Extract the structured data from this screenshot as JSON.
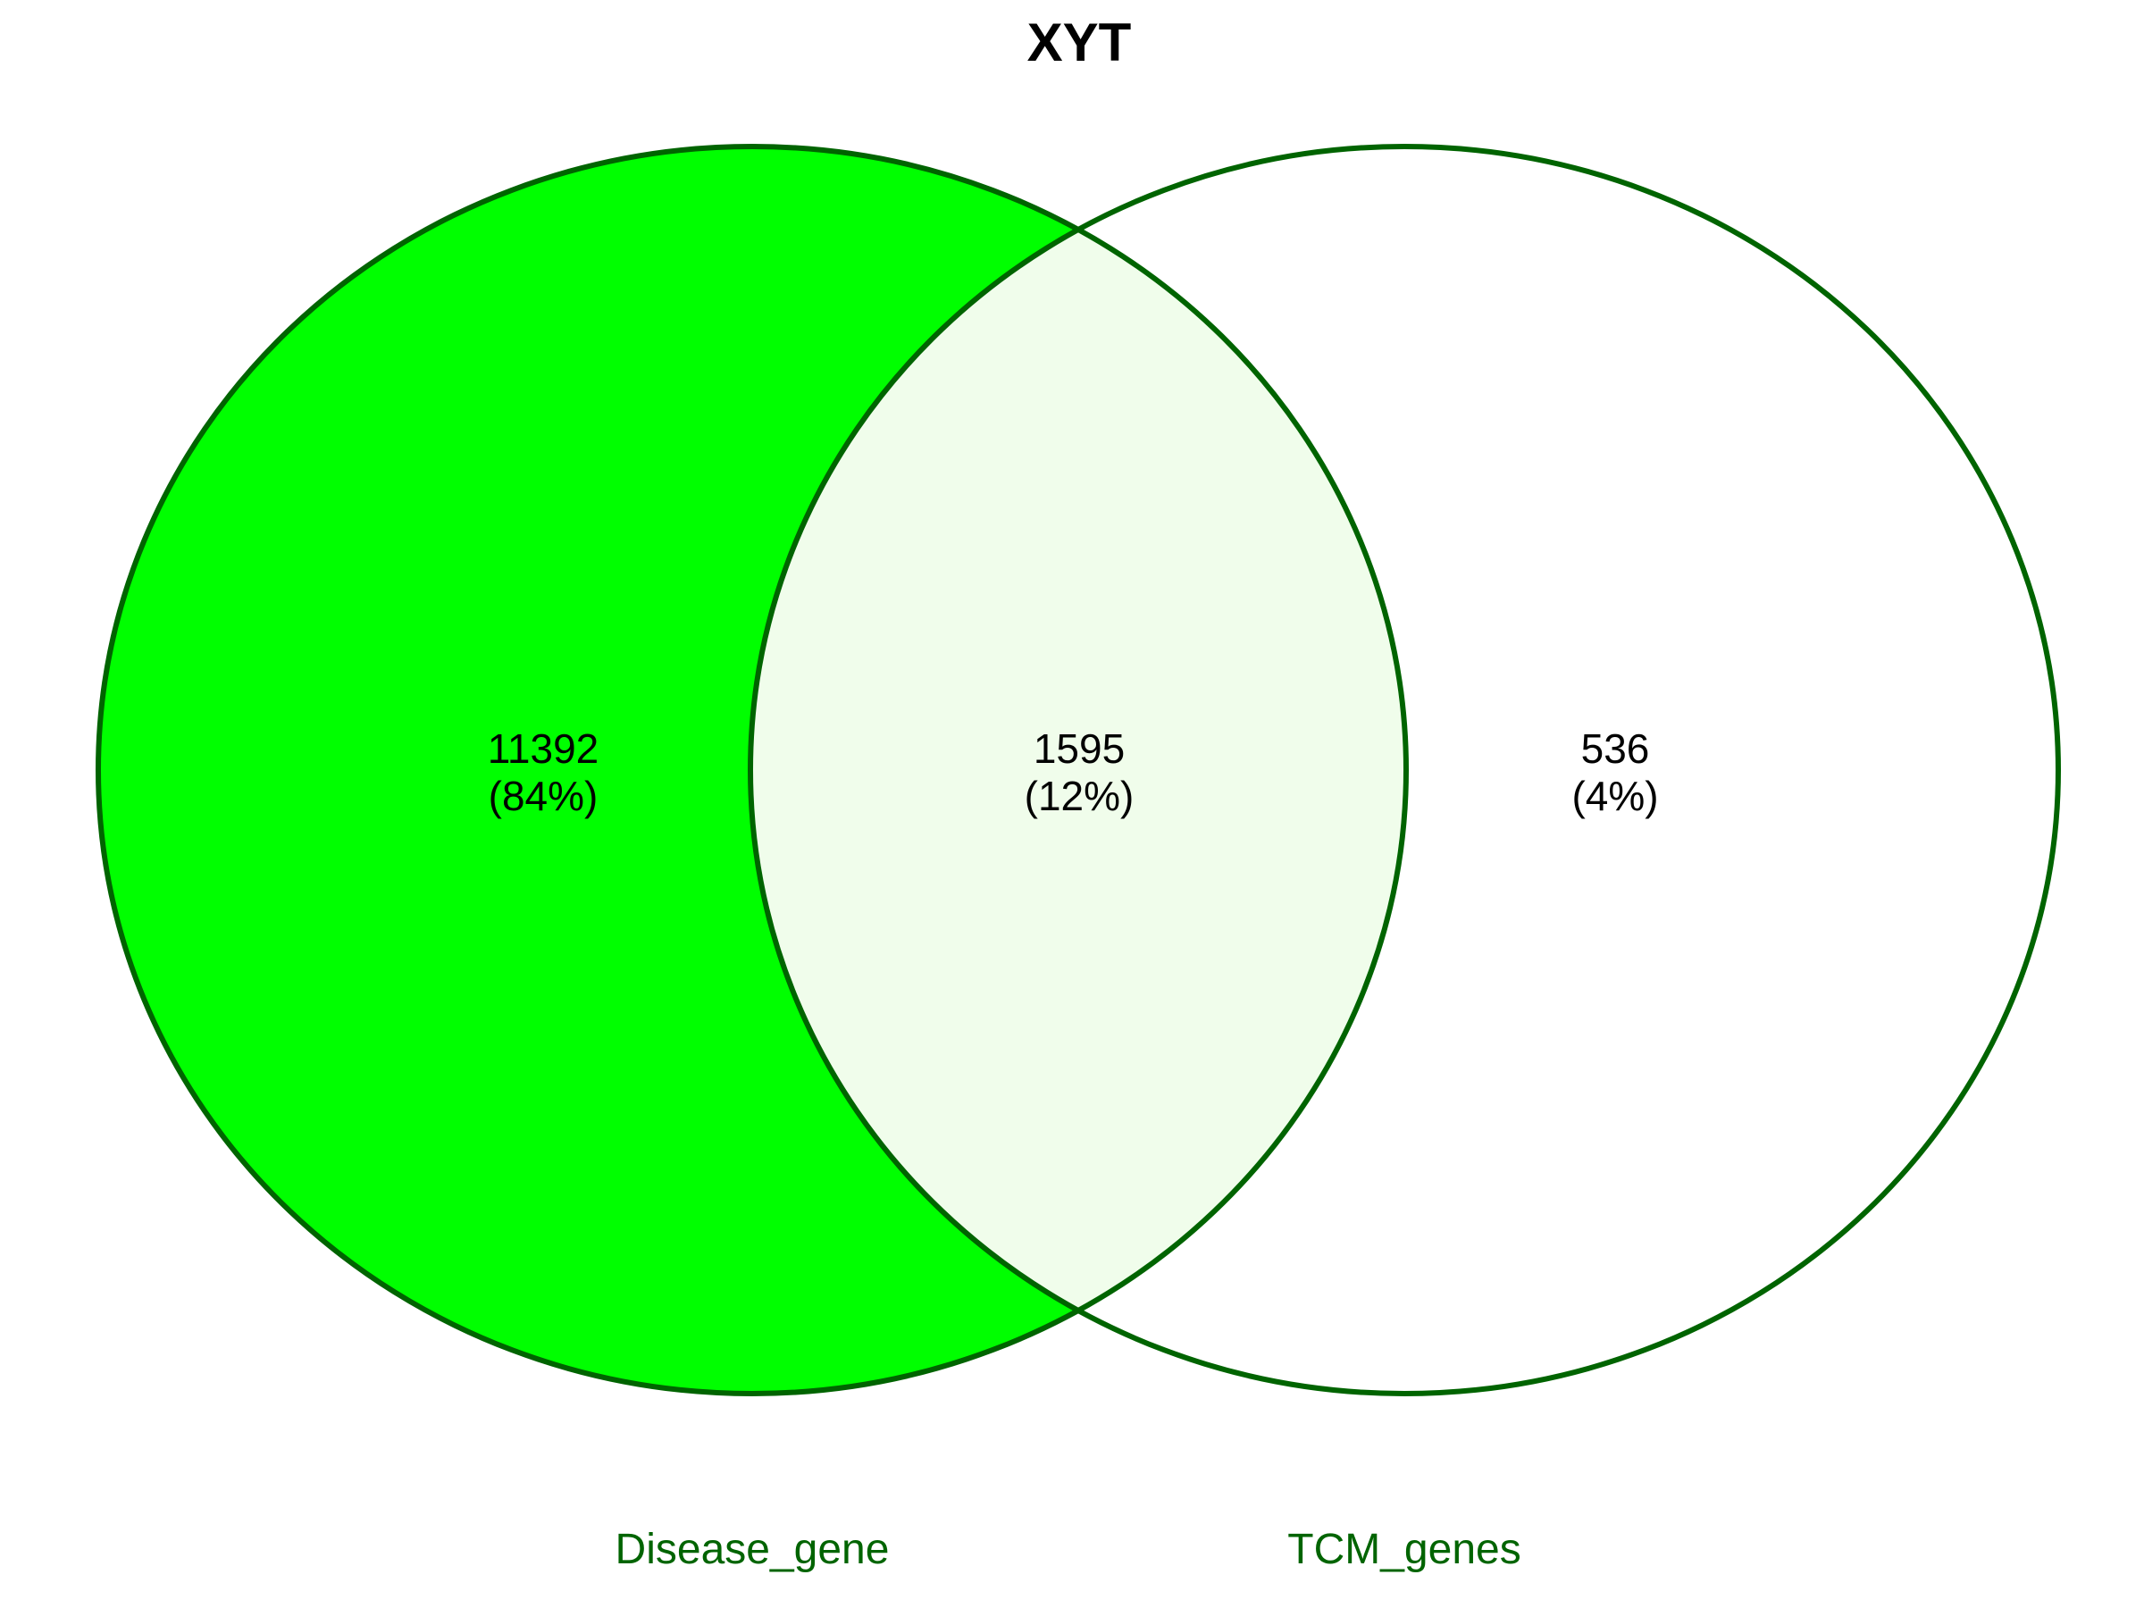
{
  "chart_data": {
    "type": "venn",
    "title": "XYT",
    "sets": [
      {
        "name": "Disease_gene",
        "fill": "#00ff00"
      },
      {
        "name": "TCM_genes",
        "fill": "#ffffff"
      }
    ],
    "regions": [
      {
        "sets": [
          "Disease_gene"
        ],
        "count": "11392",
        "percent": "(84%)"
      },
      {
        "sets": [
          "Disease_gene",
          "TCM_genes"
        ],
        "count": "1595",
        "percent": "(12%)"
      },
      {
        "sets": [
          "TCM_genes"
        ],
        "count": "536",
        "percent": "(4%)"
      }
    ],
    "colors": {
      "outline": "#006400",
      "label": "#006400",
      "intersection": "#f0fdeb"
    }
  }
}
